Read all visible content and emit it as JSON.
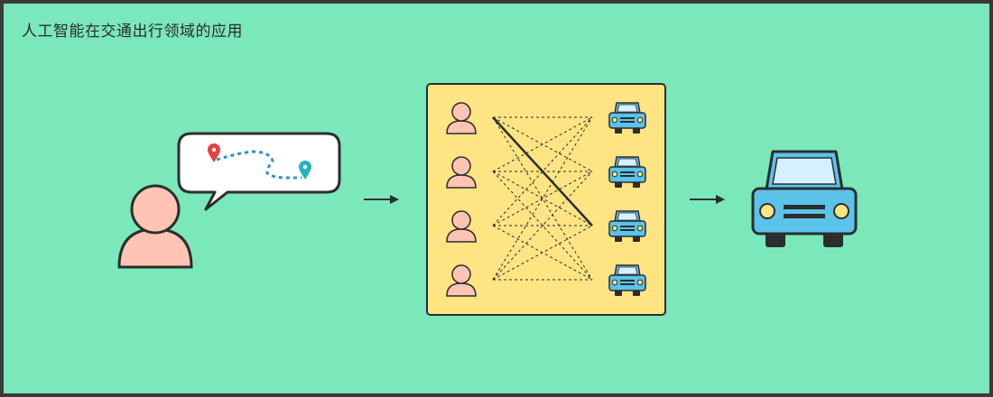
{
  "title": "人工智能在交通出行领域的应用",
  "colors": {
    "background": "#7ae8bb",
    "person_fill": "#ffc4b4",
    "panel_fill": "#ffe484",
    "car_body": "#5bc3ea",
    "car_window": "#d6f0ff",
    "car_lights": "#ffe484",
    "pin_start": "#e8413c",
    "pin_end": "#26b3c6",
    "route_line": "#2f8fe0",
    "outline": "#2d2d2d"
  },
  "icons": {
    "passenger": "person-icon",
    "request_bubble": "speech-bubble-icon",
    "start_pin": "location-pin-icon",
    "end_pin": "location-pin-icon",
    "flow_arrow": "arrow-right-icon",
    "matched_car": "car-icon"
  },
  "matching": {
    "passenger_count": 4,
    "car_count": 4,
    "selected_match": {
      "passenger": 1,
      "car": 3
    }
  }
}
